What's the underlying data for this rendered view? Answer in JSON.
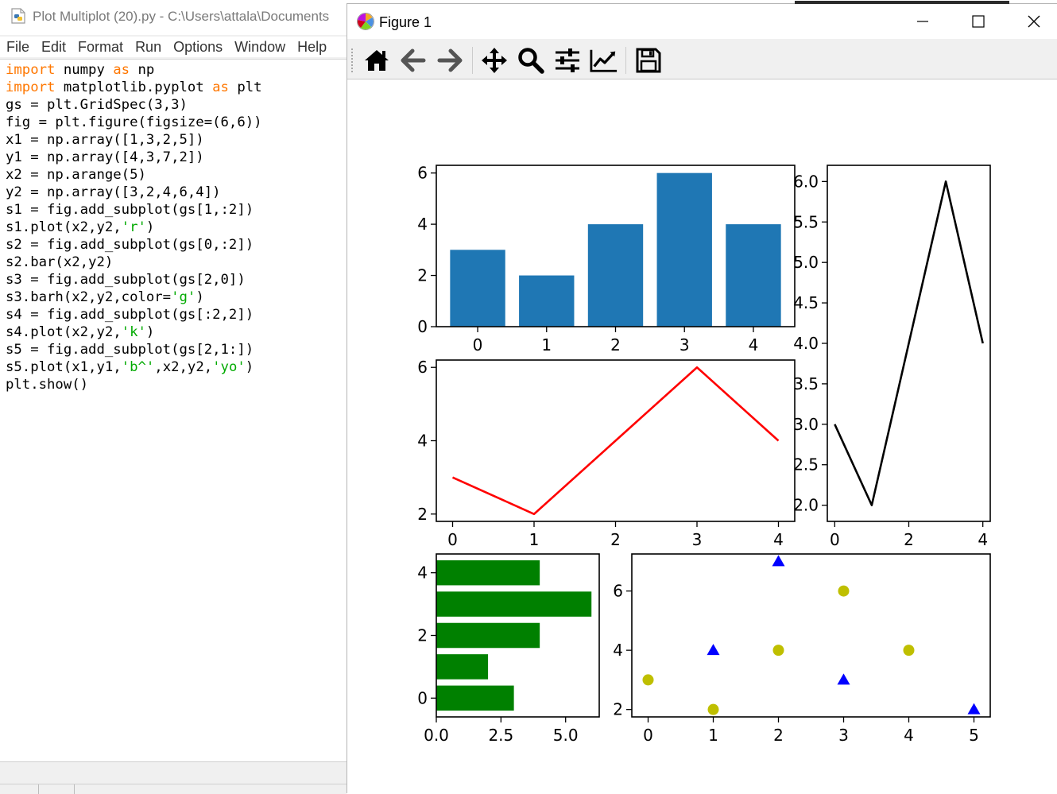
{
  "editor": {
    "title": "Plot Multiplot (20).py - C:\\Users\\attala\\Documents",
    "menu": [
      "File",
      "Edit",
      "Format",
      "Run",
      "Options",
      "Window",
      "Help"
    ],
    "code_lines": [
      [
        {
          "t": "import",
          "c": "kw"
        },
        {
          "t": " numpy "
        },
        {
          "t": "as",
          "c": "kw"
        },
        {
          "t": " np"
        }
      ],
      [
        {
          "t": "import",
          "c": "kw"
        },
        {
          "t": " matplotlib.pyplot "
        },
        {
          "t": "as",
          "c": "kw"
        },
        {
          "t": " plt"
        }
      ],
      [
        {
          "t": "gs = plt.GridSpec(3,3)"
        }
      ],
      [
        {
          "t": "fig = plt.figure(figsize=(6,6))"
        }
      ],
      [
        {
          "t": "x1 = np.array([1,3,2,5])"
        }
      ],
      [
        {
          "t": "y1 = np.array([4,3,7,2])"
        }
      ],
      [
        {
          "t": "x2 = np.arange(5)"
        }
      ],
      [
        {
          "t": "y2 = np.array([3,2,4,6,4])"
        }
      ],
      [
        {
          "t": "s1 = fig.add_subplot(gs[1,:2])"
        }
      ],
      [
        {
          "t": "s1.plot(x2,y2,"
        },
        {
          "t": "'r'",
          "c": "st"
        },
        {
          "t": ")"
        }
      ],
      [
        {
          "t": "s2 = fig.add_subplot(gs[0,:2])"
        }
      ],
      [
        {
          "t": "s2.bar(x2,y2)"
        }
      ],
      [
        {
          "t": "s3 = fig.add_subplot(gs[2,0])"
        }
      ],
      [
        {
          "t": "s3.barh(x2,y2,color="
        },
        {
          "t": "'g'",
          "c": "st"
        },
        {
          "t": ")"
        }
      ],
      [
        {
          "t": "s4 = fig.add_subplot(gs[:2,2])"
        }
      ],
      [
        {
          "t": "s4.plot(x2,y2,"
        },
        {
          "t": "'k'",
          "c": "st"
        },
        {
          "t": ")"
        }
      ],
      [
        {
          "t": "s5 = fig.add_subplot(gs[2,1:])"
        }
      ],
      [
        {
          "t": "s5.plot(x1,y1,"
        },
        {
          "t": "'b^'",
          "c": "st"
        },
        {
          "t": ",x2,y2,"
        },
        {
          "t": "'yo'",
          "c": "st"
        },
        {
          "t": ")"
        }
      ],
      [
        {
          "t": "plt.show()"
        }
      ]
    ]
  },
  "figure_window": {
    "title": "Figure 1",
    "toolbar_icons": [
      "home-icon",
      "back-arrow-icon",
      "forward-arrow-icon",
      "pan-move-icon",
      "zoom-magnifier-icon",
      "configure-subplots-icon",
      "edit-axis-icon",
      "save-disk-icon"
    ],
    "colors": {
      "bar": "#1f77b4",
      "red_line": "#ff0000",
      "black_line": "#000000",
      "green_bar": "#008000",
      "blue_marker": "#0000ff",
      "yellow_marker": "#bfbf00"
    }
  },
  "chart_data": [
    {
      "type": "bar",
      "position": "top-left",
      "x": [
        0,
        1,
        2,
        3,
        4
      ],
      "values": [
        3,
        2,
        4,
        6,
        4
      ],
      "xticks": [
        "0",
        "1",
        "2",
        "3",
        "4"
      ],
      "yticks": [
        "0",
        "2",
        "4",
        "6"
      ],
      "xlim": [
        -0.6,
        4.6
      ],
      "ylim": [
        0,
        6.3
      ]
    },
    {
      "type": "line",
      "position": "middle-left",
      "x": [
        0,
        1,
        2,
        3,
        4
      ],
      "y": [
        3,
        2,
        4,
        6,
        4
      ],
      "color": "red",
      "xticks": [
        "0",
        "1",
        "2",
        "3",
        "4"
      ],
      "yticks": [
        "2",
        "4",
        "6"
      ],
      "xlim": [
        -0.2,
        4.2
      ],
      "ylim": [
        1.8,
        6.2
      ]
    },
    {
      "type": "line",
      "position": "right, spanning top two rows",
      "x": [
        0,
        1,
        2,
        3,
        4
      ],
      "y": [
        3,
        2,
        4,
        6,
        4
      ],
      "color": "black",
      "xticks": [
        "0",
        "2",
        "4"
      ],
      "yticks": [
        "2.0",
        "2.5",
        "3.0",
        "3.5",
        "4.0",
        "4.5",
        "5.0",
        "5.5",
        "6.0"
      ],
      "xlim": [
        -0.2,
        4.2
      ],
      "ylim": [
        1.8,
        6.2
      ]
    },
    {
      "type": "bar",
      "orientation": "horizontal",
      "position": "bottom-left",
      "y": [
        0,
        1,
        2,
        3,
        4
      ],
      "values": [
        3,
        2,
        4,
        6,
        4
      ],
      "color": "green",
      "xticks": [
        "0.0",
        "2.5",
        "5.0"
      ],
      "yticks": [
        "0",
        "2",
        "4"
      ],
      "xlim": [
        0,
        6.3
      ],
      "ylim": [
        -0.6,
        4.6
      ]
    },
    {
      "type": "scatter",
      "position": "bottom-right, spanning two columns",
      "series": [
        {
          "marker": "blue triangle",
          "x": [
            1,
            3,
            2,
            5
          ],
          "y": [
            4,
            3,
            7,
            2
          ]
        },
        {
          "marker": "yellow circle",
          "x": [
            0,
            1,
            2,
            3,
            4
          ],
          "y": [
            3,
            2,
            4,
            6,
            4
          ]
        }
      ],
      "xticks": [
        "0",
        "1",
        "2",
        "3",
        "4",
        "5"
      ],
      "yticks": [
        "2",
        "4",
        "6"
      ],
      "xlim": [
        -0.25,
        5.25
      ],
      "ylim": [
        1.75,
        7.25
      ]
    }
  ]
}
